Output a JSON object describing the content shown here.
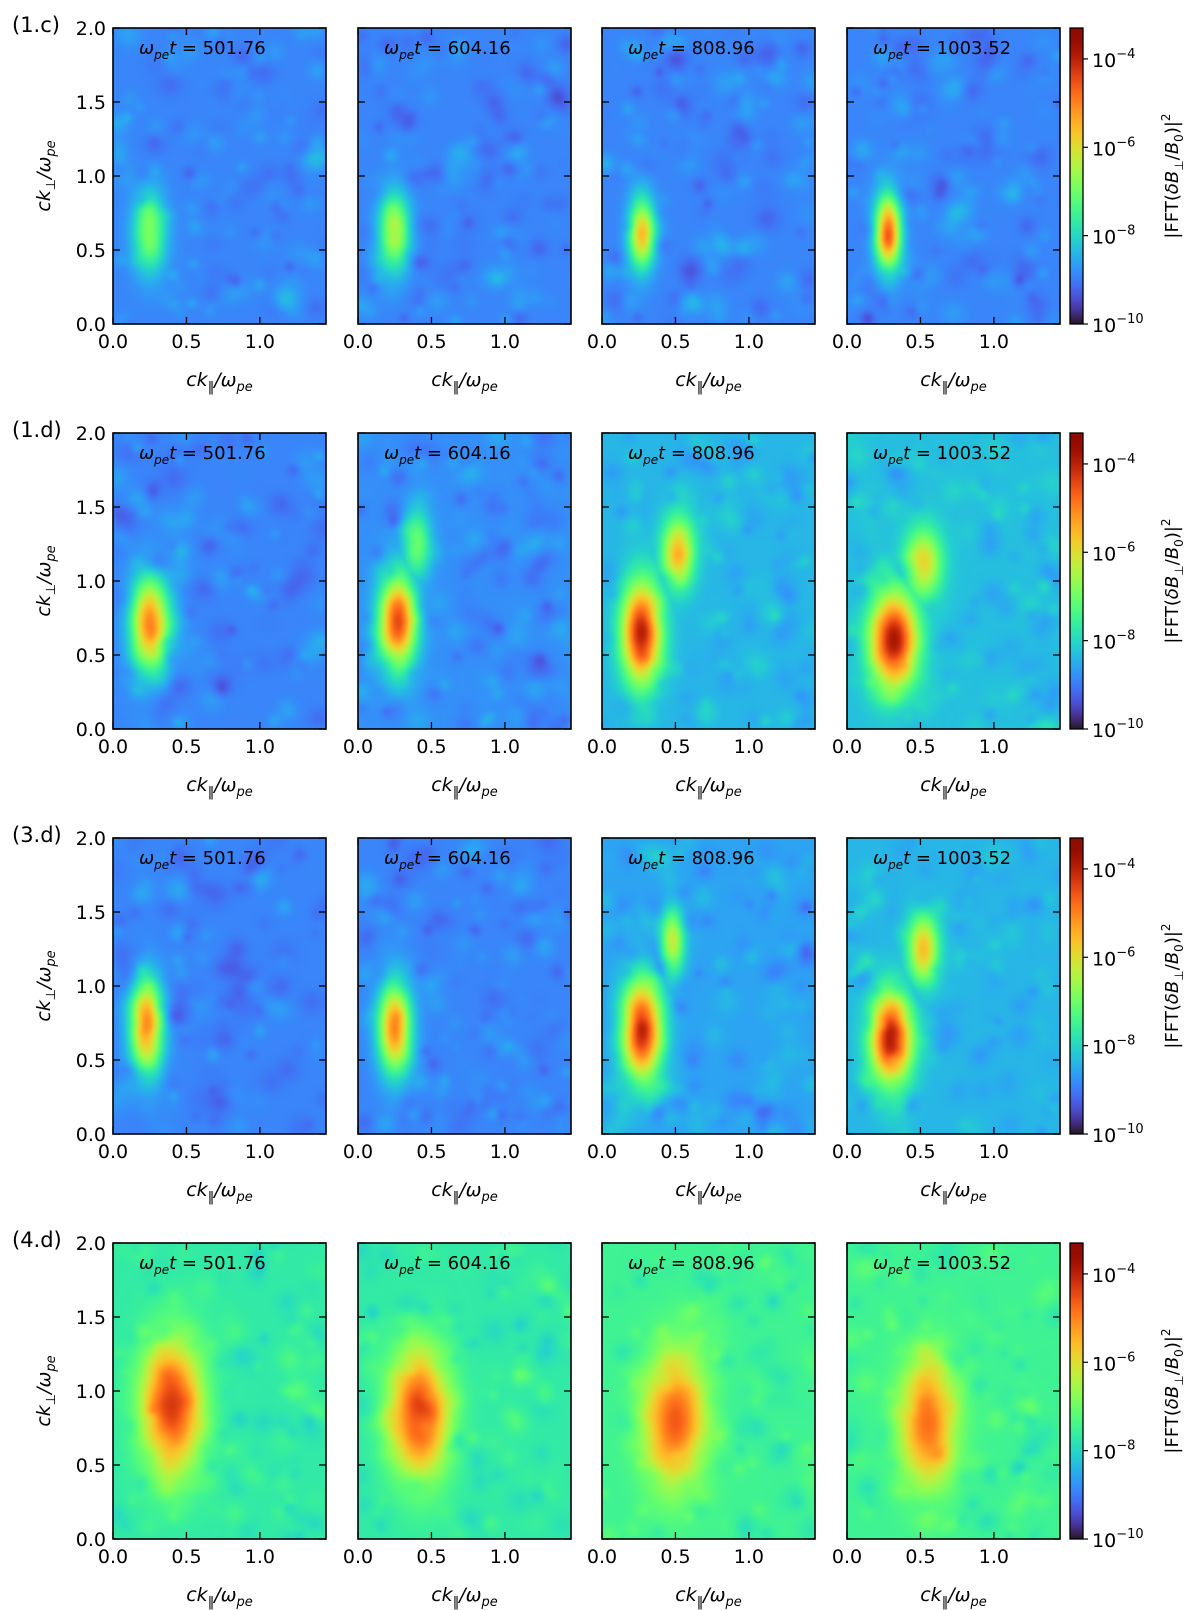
{
  "chart_data": {
    "type": "heatmap",
    "colormap": "turbo",
    "xlabel": "ck‖/ωpe",
    "ylabel": "ck⊥/ωpe",
    "xlim": [
      0.0,
      1.45
    ],
    "ylim": [
      0.0,
      2.0
    ],
    "xticks": [
      "0.0",
      "0.5",
      "1.0"
    ],
    "yticks": [
      "0.0",
      "0.5",
      "1.0",
      "1.5",
      "2.0"
    ],
    "colorbar": {
      "label": "|FFT(δB⊥/B0)|²",
      "scale": "log",
      "range_log10": [
        -10,
        -3.3
      ],
      "ticks": [
        {
          "exp": -4,
          "label": "10−4"
        },
        {
          "exp": -6,
          "label": "10−6"
        },
        {
          "exp": -8,
          "label": "10−8"
        },
        {
          "exp": -10,
          "label": "10−10"
        }
      ]
    },
    "times": [
      "501.76",
      "604.16",
      "808.96",
      "1003.52"
    ],
    "time_label_prefix": "ωpe t = ",
    "rows": [
      {
        "label": "(1.c)",
        "panels": [
          {
            "t": "501.76",
            "background_log10": -8.9,
            "blobs": [
              {
                "kx": 0.25,
                "ky": 0.62,
                "rx": 0.14,
                "ry": 0.33,
                "peak_log10": -6.7
              }
            ]
          },
          {
            "t": "604.16",
            "background_log10": -8.9,
            "blobs": [
              {
                "kx": 0.25,
                "ky": 0.62,
                "rx": 0.13,
                "ry": 0.32,
                "peak_log10": -6.3
              }
            ]
          },
          {
            "t": "808.96",
            "background_log10": -8.9,
            "blobs": [
              {
                "kx": 0.27,
                "ky": 0.62,
                "rx": 0.11,
                "ry": 0.3,
                "peak_log10": -5.5
              }
            ]
          },
          {
            "t": "1003.52",
            "background_log10": -8.9,
            "blobs": [
              {
                "kx": 0.28,
                "ky": 0.62,
                "rx": 0.11,
                "ry": 0.32,
                "peak_log10": -4.8
              }
            ]
          }
        ]
      },
      {
        "label": "(1.d)",
        "panels": [
          {
            "t": "501.76",
            "background_log10": -8.9,
            "blobs": [
              {
                "kx": 0.25,
                "ky": 0.72,
                "rx": 0.16,
                "ry": 0.38,
                "peak_log10": -5.0
              }
            ]
          },
          {
            "t": "604.16",
            "background_log10": -8.8,
            "blobs": [
              {
                "kx": 0.27,
                "ky": 0.72,
                "rx": 0.16,
                "ry": 0.4,
                "peak_log10": -4.5
              },
              {
                "kx": 0.4,
                "ky": 1.25,
                "rx": 0.12,
                "ry": 0.3,
                "peak_log10": -7.0
              }
            ]
          },
          {
            "t": "808.96",
            "background_log10": -8.4,
            "blobs": [
              {
                "kx": 0.27,
                "ky": 0.65,
                "rx": 0.17,
                "ry": 0.42,
                "peak_log10": -3.9
              },
              {
                "kx": 0.52,
                "ky": 1.2,
                "rx": 0.14,
                "ry": 0.3,
                "peak_log10": -5.6
              }
            ]
          },
          {
            "t": "1003.52",
            "background_log10": -8.3,
            "blobs": [
              {
                "kx": 0.32,
                "ky": 0.6,
                "rx": 0.2,
                "ry": 0.4,
                "peak_log10": -3.8
              },
              {
                "kx": 0.52,
                "ky": 1.12,
                "rx": 0.16,
                "ry": 0.3,
                "peak_log10": -5.9
              }
            ]
          }
        ]
      },
      {
        "label": "(3.d)",
        "panels": [
          {
            "t": "501.76",
            "background_log10": -8.9,
            "blobs": [
              {
                "kx": 0.23,
                "ky": 0.72,
                "rx": 0.14,
                "ry": 0.38,
                "peak_log10": -5.0
              }
            ]
          },
          {
            "t": "604.16",
            "background_log10": -8.9,
            "blobs": [
              {
                "kx": 0.25,
                "ky": 0.72,
                "rx": 0.14,
                "ry": 0.38,
                "peak_log10": -5.0
              }
            ]
          },
          {
            "t": "808.96",
            "background_log10": -8.6,
            "blobs": [
              {
                "kx": 0.27,
                "ky": 0.7,
                "rx": 0.17,
                "ry": 0.42,
                "peak_log10": -4.0
              },
              {
                "kx": 0.48,
                "ky": 1.3,
                "rx": 0.1,
                "ry": 0.3,
                "peak_log10": -6.3
              }
            ]
          },
          {
            "t": "1003.52",
            "background_log10": -8.4,
            "blobs": [
              {
                "kx": 0.3,
                "ky": 0.65,
                "rx": 0.18,
                "ry": 0.38,
                "peak_log10": -3.8
              },
              {
                "kx": 0.52,
                "ky": 1.25,
                "rx": 0.13,
                "ry": 0.3,
                "peak_log10": -5.6
              }
            ]
          }
        ]
      },
      {
        "label": "(4.d)",
        "panels": [
          {
            "t": "501.76",
            "background_log10": -7.7,
            "blobs": [
              {
                "kx": 0.4,
                "ky": 0.9,
                "rx": 0.26,
                "ry": 0.55,
                "peak_log10": -4.3
              }
            ]
          },
          {
            "t": "604.16",
            "background_log10": -7.7,
            "blobs": [
              {
                "kx": 0.42,
                "ky": 0.85,
                "rx": 0.25,
                "ry": 0.55,
                "peak_log10": -4.3
              }
            ]
          },
          {
            "t": "808.96",
            "background_log10": -7.5,
            "blobs": [
              {
                "kx": 0.5,
                "ky": 0.8,
                "rx": 0.26,
                "ry": 0.55,
                "peak_log10": -4.6
              }
            ]
          },
          {
            "t": "1003.52",
            "background_log10": -7.5,
            "blobs": [
              {
                "kx": 0.55,
                "ky": 0.78,
                "rx": 0.24,
                "ry": 0.52,
                "peak_log10": -4.8
              }
            ]
          }
        ]
      }
    ]
  }
}
